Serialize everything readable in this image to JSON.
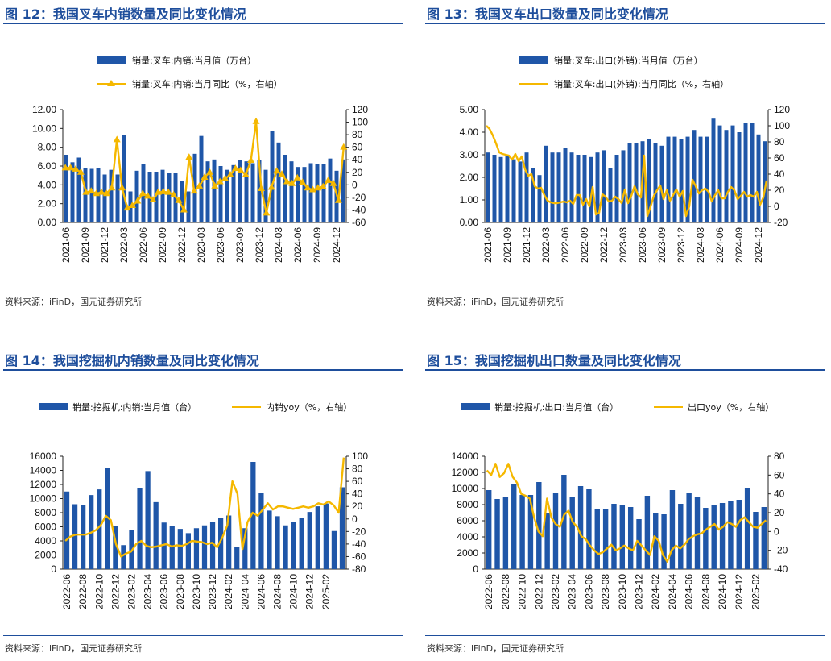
{
  "source_text": "资料来源：iFinD，国元证券研究所",
  "colors": {
    "bar": "#1f56a8",
    "line": "#f5b800",
    "title": "#1e4e9c"
  },
  "charts": [
    {
      "id": "p12",
      "title": "图 12：我国叉车内销数量及同比变化情况",
      "legend_bar": "销量:叉车:内销:当月值（万台）",
      "legend_line": "销量:叉车:内销:当月同比（%，右轴）",
      "legend_layout": "stacked",
      "line_markers": true,
      "left_ticks": [
        "0.00",
        "2.00",
        "4.00",
        "6.00",
        "8.00",
        "10.00",
        "12.00"
      ],
      "right_ticks": [
        "-60",
        "-40",
        "-20",
        "0",
        "20",
        "40",
        "60",
        "80",
        "100",
        "120"
      ]
    },
    {
      "id": "p13",
      "title": "图 13：我国叉车出口数量及同比变化情况",
      "legend_bar": "销量:叉车:出口(外销):当月值（万台）",
      "legend_line": "销量:叉车:出口(外销):当月同比（%，右轴）",
      "legend_layout": "stacked",
      "line_markers": false,
      "left_ticks": [
        "0.00",
        "1.00",
        "2.00",
        "3.00",
        "4.00",
        "5.00"
      ],
      "right_ticks": [
        "-20",
        "0",
        "20",
        "40",
        "60",
        "80",
        "100",
        "120"
      ]
    },
    {
      "id": "p14",
      "title": "图 14：我国挖掘机内销数量及同比变化情况",
      "legend_bar": "销量:挖掘机:内销:当月值（台）",
      "legend_line": "内销yoy（%，右轴）",
      "legend_layout": "inline",
      "line_markers": false,
      "left_ticks": [
        "0",
        "2000",
        "4000",
        "6000",
        "8000",
        "10000",
        "12000",
        "14000",
        "16000"
      ],
      "right_ticks": [
        "-80",
        "-60",
        "-40",
        "-20",
        "0",
        "20",
        "40",
        "60",
        "80",
        "100"
      ]
    },
    {
      "id": "p15",
      "title": "图 15：我国挖掘机出口数量及同比变化情况",
      "legend_bar": "销量:挖掘机:出口:当月值（台）",
      "legend_line": "出口yoy（%，右轴）",
      "legend_layout": "inline",
      "line_markers": false,
      "left_ticks": [
        "0",
        "2000",
        "4000",
        "6000",
        "8000",
        "10000",
        "12000",
        "14000"
      ],
      "right_ticks": [
        "-40",
        "-20",
        "0",
        "20",
        "40",
        "60",
        "80"
      ]
    }
  ],
  "chart_data": [
    {
      "type": "bar",
      "title": "图 12：我国叉车内销数量及同比变化情况",
      "x_tick_labels": [
        "2021-06",
        "2021-09",
        "2021-12",
        "2022-03",
        "2022-06",
        "2022-09",
        "2022-12",
        "2023-03",
        "2023-06",
        "2023-09",
        "2023-12",
        "2024-03",
        "2024-06",
        "2024-09",
        "2024-12"
      ],
      "x_tick_every": 3,
      "ylim": [
        0,
        12
      ],
      "y2lim": [
        -60,
        120
      ],
      "series": [
        {
          "name": "销量:叉车:内销:当月值（万台）",
          "axis": "left",
          "type": "bar",
          "values": [
            7.2,
            6.4,
            6.9,
            5.8,
            5.7,
            5.8,
            5.1,
            5.6,
            5.1,
            9.3,
            3.3,
            5.5,
            6.2,
            5.4,
            5.4,
            5.6,
            5.3,
            5.3,
            4.4,
            3.3,
            7.3,
            9.2,
            6.5,
            6.7,
            6.0,
            5.6,
            6.1,
            6.6,
            6.5,
            6.3,
            6.6,
            5.6,
            9.7,
            8.5,
            7.2,
            6.5,
            5.9,
            5.9,
            6.3,
            6.2,
            6.2,
            6.8,
            5.5,
            6.7
          ]
        },
        {
          "name": "销量:叉车:内销:当月同比（%，右轴）",
          "axis": "right",
          "type": "line",
          "values": [
            27,
            27,
            25,
            20,
            -12,
            -10,
            -14,
            -12,
            -14,
            -5,
            72,
            -5,
            -37,
            -33,
            -26,
            -14,
            -18,
            -24,
            -12,
            -11,
            -12,
            -16,
            -25,
            -40,
            44,
            -10,
            -2,
            12,
            20,
            -2,
            5,
            10,
            16,
            26,
            23,
            16,
            39,
            101,
            -6,
            -45,
            -4,
            22,
            17,
            5,
            2,
            11,
            4,
            -5,
            -8,
            -5,
            -3,
            7,
            2,
            -25,
            60
          ]
        }
      ]
    },
    {
      "type": "bar",
      "title": "图 13：我国叉车出口数量及同比变化情况",
      "x_tick_labels": [
        "2021-06",
        "2021-09",
        "2021-12",
        "2022-03",
        "2022-06",
        "2022-09",
        "2022-12",
        "2023-03",
        "2023-06",
        "2023-09",
        "2023-12",
        "2024-03",
        "2024-06",
        "2024-09",
        "2024-12"
      ],
      "x_tick_every": 3,
      "ylim": [
        0,
        5
      ],
      "y2lim": [
        -20,
        120
      ],
      "series": [
        {
          "name": "销量:叉车:出口(外销):当月值（万台）",
          "axis": "left",
          "type": "bar",
          "values": [
            3.1,
            3.0,
            2.9,
            3.0,
            2.8,
            2.7,
            3.1,
            2.4,
            2.1,
            3.4,
            3.1,
            3.1,
            3.3,
            3.1,
            3.0,
            3.0,
            2.9,
            3.1,
            3.2,
            2.4,
            3.0,
            3.2,
            3.5,
            3.5,
            3.6,
            3.7,
            3.5,
            3.4,
            3.8,
            3.8,
            3.7,
            3.8,
            4.1,
            3.8,
            3.8,
            4.6,
            4.3,
            4.1,
            4.3,
            4.0,
            4.4,
            4.4,
            3.9,
            3.6
          ]
        },
        {
          "name": "销量:叉车:出口(外销):当月同比（%，右轴）",
          "axis": "right",
          "type": "line",
          "values": [
            100,
            96,
            88,
            78,
            67,
            65,
            64,
            63,
            58,
            65,
            56,
            62,
            46,
            38,
            40,
            25,
            22,
            23,
            14,
            7,
            5,
            4,
            4,
            5,
            6,
            5,
            7,
            3,
            14,
            14,
            2,
            9,
            0,
            24,
            -10,
            -8,
            15,
            12,
            6,
            7,
            12,
            9,
            4,
            21,
            4,
            13,
            25,
            15,
            11,
            63,
            -12,
            0,
            13,
            20,
            26,
            9,
            20,
            7,
            14,
            21,
            12,
            19,
            -12,
            0,
            33,
            25,
            16,
            20,
            22,
            18,
            6,
            14,
            20,
            10,
            10,
            18,
            24,
            20,
            9,
            13,
            18,
            12,
            14,
            12,
            18,
            2,
            11,
            32
          ]
        }
      ]
    },
    {
      "type": "bar",
      "title": "图 14：我国挖掘机内销数量及同比变化情况",
      "x_tick_labels": [
        "2022-06",
        "2022-08",
        "2022-10",
        "2022-12",
        "2023-02",
        "2023-04",
        "2023-06",
        "2023-08",
        "2023-10",
        "2023-12",
        "2024-02",
        "2024-04",
        "2024-06",
        "2024-08",
        "2024-10",
        "2024-12",
        "2025-02"
      ],
      "x_tick_every": 2,
      "ylim": [
        0,
        16000
      ],
      "y2lim": [
        -80,
        100
      ],
      "series": [
        {
          "name": "销量:挖掘机:内销:当月值（台）",
          "axis": "left",
          "type": "bar",
          "values": [
            11000,
            9200,
            9100,
            10500,
            11300,
            14400,
            6100,
            3400,
            5500,
            11500,
            13900,
            9500,
            6600,
            6100,
            5700,
            5100,
            5800,
            6200,
            6700,
            7200,
            7600,
            3200,
            5800,
            15200,
            10800,
            8300,
            7500,
            6200,
            6700,
            7300,
            8100,
            8900,
            9300,
            5400,
            11600
          ]
        },
        {
          "name": "内销yoy（%，右轴）",
          "axis": "right",
          "type": "line",
          "values": [
            -35,
            -28,
            -25,
            -25,
            -25,
            -22,
            -18,
            -10,
            5,
            -2,
            -40,
            -60,
            -55,
            -52,
            -40,
            -35,
            -43,
            -45,
            -44,
            -42,
            -40,
            -44,
            -42,
            -43,
            -40,
            -35,
            -36,
            -37,
            -40,
            -38,
            -45,
            -30,
            -10,
            60,
            40,
            -48,
            -5,
            10,
            5,
            15,
            25,
            15,
            20,
            20,
            18,
            16,
            18,
            20,
            18,
            20,
            25,
            23,
            28,
            22,
            10,
            98
          ]
        }
      ]
    },
    {
      "type": "bar",
      "title": "图 15：我国挖掘机出口数量及同比变化情况",
      "x_tick_labels": [
        "2022-06",
        "2022-08",
        "2022-10",
        "2022-12",
        "2023-02",
        "2023-04",
        "2023-06",
        "2023-08",
        "2023-10",
        "2023-12",
        "2024-02",
        "2024-04",
        "2024-06",
        "2024-08",
        "2024-10",
        "2024-12",
        "2025-02"
      ],
      "x_tick_every": 2,
      "ylim": [
        0,
        14000
      ],
      "y2lim": [
        -40,
        80
      ],
      "series": [
        {
          "name": "销量:挖掘机:出口:当月值（台）",
          "axis": "left",
          "type": "bar",
          "values": [
            9800,
            8700,
            9000,
            10600,
            9200,
            9200,
            10800,
            7000,
            9400,
            11700,
            9000,
            10300,
            9900,
            7500,
            7500,
            8100,
            7900,
            7700,
            6200,
            9100,
            7000,
            6800,
            9800,
            8100,
            9400,
            9000,
            7600,
            8000,
            8200,
            8400,
            8600,
            10000,
            7100,
            7700
          ]
        },
        {
          "name": "出口yoy（%，右轴）",
          "axis": "right",
          "type": "line",
          "values": [
            65,
            60,
            72,
            58,
            62,
            72,
            58,
            52,
            40,
            38,
            35,
            15,
            0,
            -5,
            35,
            15,
            8,
            5,
            18,
            22,
            10,
            5,
            -5,
            -8,
            -15,
            -20,
            -24,
            -22,
            -18,
            -14,
            -20,
            -18,
            -15,
            -18,
            -20,
            -10,
            -15,
            -20,
            -25,
            -5,
            -10,
            -25,
            -32,
            -20,
            -15,
            -18,
            -14,
            -8,
            -5,
            -3,
            -2,
            2,
            5,
            8,
            2,
            5,
            10,
            8,
            5,
            12,
            15,
            10,
            5,
            4,
            8,
            12
          ]
        }
      ]
    }
  ]
}
